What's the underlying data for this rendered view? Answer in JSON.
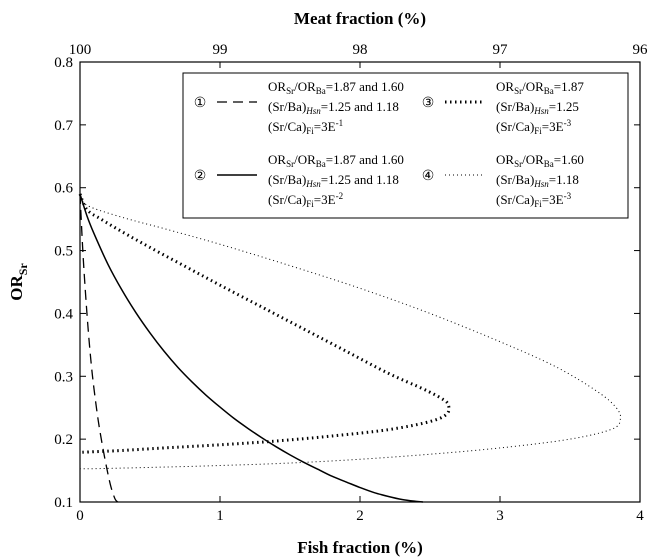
{
  "chart_data": {
    "type": "line",
    "title": "",
    "xlabel": "Fish fraction (%)",
    "x2label": "Meat fraction (%)",
    "ylabel_main": "OR",
    "ylabel_sub": "Sr",
    "xlim": [
      0,
      4
    ],
    "ylim": [
      0.1,
      0.8
    ],
    "x_ticks": [
      0,
      1,
      2,
      3,
      4
    ],
    "x_tick_labels": [
      "0",
      "1",
      "2",
      "3",
      "4"
    ],
    "x2_ticks": [
      0,
      1,
      2,
      3,
      4
    ],
    "x2_tick_labels": [
      "100",
      "99",
      "98",
      "97",
      "96"
    ],
    "y_ticks": [
      0.1,
      0.2,
      0.3,
      0.4,
      0.5,
      0.6,
      0.7,
      0.8
    ],
    "y_tick_labels": [
      "0.1",
      "0.2",
      "0.3",
      "0.4",
      "0.5",
      "0.6",
      "0.7",
      "0.8"
    ],
    "grid": false,
    "legend_position": "top-right",
    "series": [
      {
        "id": "1",
        "style": "dashed",
        "legend": {
          "number": "①",
          "lines": [
            {
              "parts": [
                "OR",
                "Sr",
                "/OR",
                "Ba",
                "=1.87 and 1.60"
              ]
            },
            {
              "parts": [
                "(Sr/Ba)",
                "Hsn",
                "=1.25 and 1.18"
              ]
            },
            {
              "parts": [
                "(Sr/Ca)",
                "Fi",
                "=3E",
                "-1"
              ]
            }
          ]
        },
        "x": [
          0.0,
          0.02,
          0.04,
          0.06,
          0.08,
          0.1,
          0.13,
          0.16,
          0.19,
          0.22,
          0.25,
          0.27
        ],
        "y": [
          0.59,
          0.5,
          0.43,
          0.37,
          0.32,
          0.28,
          0.23,
          0.19,
          0.155,
          0.125,
          0.105,
          0.1
        ]
      },
      {
        "id": "2",
        "style": "solid",
        "legend": {
          "number": "②",
          "lines": [
            {
              "parts": [
                "OR",
                "Sr",
                "/OR",
                "Ba",
                "=1.87 and 1.60"
              ]
            },
            {
              "parts": [
                "(Sr/Ba)",
                "Hsn",
                "=1.25 and 1.18"
              ]
            },
            {
              "parts": [
                "(Sr/Ca)",
                "Fi",
                "=3E",
                "-2"
              ]
            }
          ]
        },
        "x": [
          0.0,
          0.05,
          0.1,
          0.2,
          0.3,
          0.4,
          0.5,
          0.6,
          0.7,
          0.8,
          0.9,
          1.0,
          1.1,
          1.2,
          1.3,
          1.4,
          1.5,
          1.6,
          1.7,
          1.8,
          1.9,
          2.0,
          2.1,
          2.2,
          2.3,
          2.4,
          2.45
        ],
        "y": [
          0.59,
          0.555,
          0.527,
          0.478,
          0.437,
          0.401,
          0.369,
          0.34,
          0.314,
          0.291,
          0.27,
          0.251,
          0.233,
          0.217,
          0.202,
          0.188,
          0.175,
          0.163,
          0.152,
          0.141,
          0.132,
          0.123,
          0.115,
          0.109,
          0.104,
          0.101,
          0.1
        ]
      },
      {
        "id": "3",
        "style": "dotted-heavy",
        "legend": {
          "number": "③",
          "lines": [
            {
              "parts": [
                "OR",
                "Sr",
                "/OR",
                "Ba",
                "=1.87"
              ]
            },
            {
              "parts": [
                "(Sr/Ba)",
                "Hsn",
                "=1.25"
              ]
            },
            {
              "parts": [
                "(Sr/Ca)",
                "Fi",
                "=3E",
                "-3"
              ]
            }
          ]
        },
        "x": [
          0.0,
          0.05,
          0.15,
          0.3,
          0.5,
          0.75,
          1.0,
          1.3,
          1.6,
          1.9,
          2.2,
          2.45,
          2.58,
          2.63,
          2.62,
          2.5,
          2.2,
          1.8,
          1.4,
          1.0,
          0.6,
          0.3,
          0.1,
          0.0
        ],
        "y": [
          0.59,
          0.565,
          0.55,
          0.53,
          0.505,
          0.475,
          0.445,
          0.41,
          0.375,
          0.34,
          0.305,
          0.28,
          0.265,
          0.255,
          0.24,
          0.228,
          0.215,
          0.205,
          0.197,
          0.191,
          0.186,
          0.182,
          0.18,
          0.179
        ]
      },
      {
        "id": "4",
        "style": "dotted-fine",
        "legend": {
          "number": "④",
          "lines": [
            {
              "parts": [
                "OR",
                "Sr",
                "/OR",
                "Ba",
                "=1.60"
              ]
            },
            {
              "parts": [
                "(Sr/Ba)",
                "Hsn",
                "=1.18"
              ]
            },
            {
              "parts": [
                "(Sr/Ca)",
                "Fi",
                "=3E",
                "-3"
              ]
            }
          ]
        },
        "x": [
          0.0,
          0.05,
          0.3,
          0.6,
          1.0,
          1.5,
          2.0,
          2.5,
          3.0,
          3.4,
          3.7,
          3.83,
          3.86,
          3.8,
          3.5,
          3.0,
          2.5,
          2.0,
          1.5,
          1.0,
          0.5,
          0.1,
          0.0
        ],
        "y": [
          0.59,
          0.572,
          0.553,
          0.535,
          0.51,
          0.476,
          0.44,
          0.4,
          0.355,
          0.315,
          0.275,
          0.25,
          0.232,
          0.216,
          0.2,
          0.186,
          0.176,
          0.168,
          0.162,
          0.158,
          0.155,
          0.153,
          0.153
        ]
      }
    ]
  }
}
